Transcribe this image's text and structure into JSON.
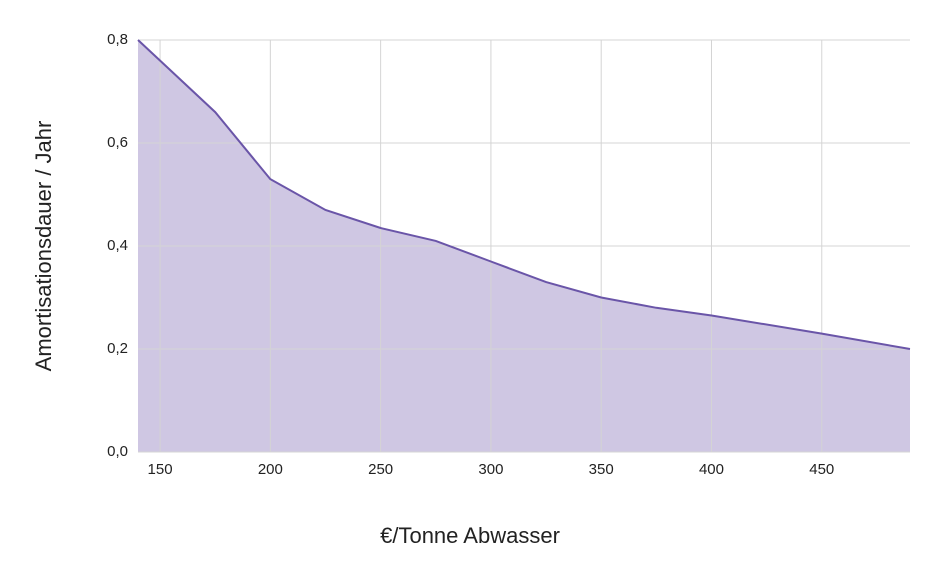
{
  "chart_data": {
    "type": "area",
    "x_label": "€/Tonne Abwasser",
    "y_label": "Amortisationsdauer / Jahr",
    "x": [
      140,
      150,
      175,
      200,
      225,
      250,
      275,
      300,
      325,
      350,
      375,
      400,
      450,
      490
    ],
    "series": [
      {
        "name": "Amortisationsdauer",
        "color": "#6a55a8",
        "fill": "#cfc7e3",
        "values": [
          0.8,
          0.76,
          0.66,
          0.53,
          0.47,
          0.435,
          0.41,
          0.37,
          0.33,
          0.3,
          0.28,
          0.265,
          0.23,
          0.2
        ]
      }
    ],
    "xlim": [
      140,
      490
    ],
    "xticks": [
      150,
      200,
      250,
      300,
      350,
      400,
      450
    ],
    "ylim": [
      0,
      0.8
    ],
    "yticks": [
      {
        "value": 0,
        "label": "0,0"
      },
      {
        "value": 0.2,
        "label": "0,2"
      },
      {
        "value": 0.4,
        "label": "0,4"
      },
      {
        "value": 0.6,
        "label": "0,6"
      },
      {
        "value": 0.8,
        "label": "0,8"
      }
    ],
    "grid": true
  }
}
